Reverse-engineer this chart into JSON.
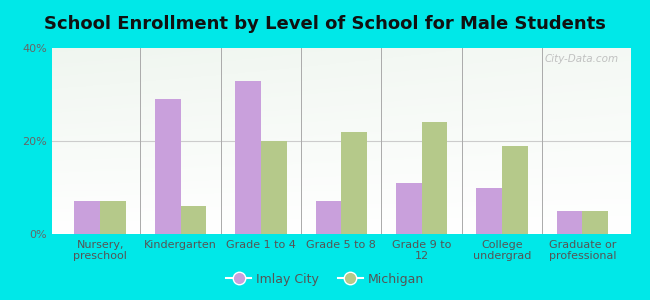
{
  "title": "School Enrollment by Level of School for Male Students",
  "categories": [
    "Nursery,\npreschool",
    "Kindergarten",
    "Grade 1 to 4",
    "Grade 5 to 8",
    "Grade 9 to\n12",
    "College\nundergrad",
    "Graduate or\nprofessional"
  ],
  "imlay_city": [
    7,
    29,
    33,
    7,
    11,
    10,
    5
  ],
  "michigan": [
    7,
    6,
    20,
    22,
    24,
    19,
    5
  ],
  "imlay_color": "#c9a0dc",
  "michigan_color": "#b5c98a",
  "background_outer": "#00e8e8",
  "ylim": [
    0,
    40
  ],
  "yticks": [
    0,
    20,
    40
  ],
  "ytick_labels": [
    "0%",
    "20%",
    "40%"
  ],
  "legend_imlay": "Imlay City",
  "legend_michigan": "Michigan",
  "title_fontsize": 13,
  "tick_fontsize": 8,
  "legend_fontsize": 9,
  "watermark": "City-Data.com",
  "bar_width": 0.32
}
